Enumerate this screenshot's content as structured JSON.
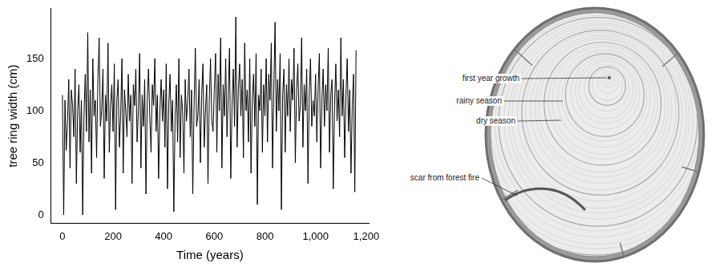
{
  "chart_data": {
    "type": "line",
    "x_label": "Time (years)",
    "y_label": "tree ring width (cm)",
    "x": [
      0,
      5,
      10,
      15,
      20,
      25,
      30,
      35,
      40,
      45,
      50,
      55,
      60,
      65,
      70,
      75,
      80,
      85,
      90,
      95,
      100,
      105,
      110,
      115,
      120,
      125,
      130,
      135,
      140,
      145,
      150,
      155,
      160,
      165,
      170,
      175,
      180,
      185,
      190,
      195,
      200,
      205,
      210,
      215,
      220,
      225,
      230,
      235,
      240,
      245,
      250,
      255,
      260,
      265,
      270,
      275,
      280,
      285,
      290,
      295,
      300,
      305,
      310,
      315,
      320,
      325,
      330,
      335,
      340,
      345,
      350,
      355,
      360,
      365,
      370,
      375,
      380,
      385,
      390,
      395,
      400,
      405,
      410,
      415,
      420,
      425,
      430,
      435,
      440,
      445,
      450,
      455,
      460,
      465,
      470,
      475,
      480,
      485,
      490,
      495,
      500,
      505,
      510,
      515,
      520,
      525,
      530,
      535,
      540,
      545,
      550,
      555,
      560,
      565,
      570,
      575,
      580,
      585,
      590,
      595,
      600,
      605,
      610,
      615,
      620,
      625,
      630,
      635,
      640,
      645,
      650,
      655,
      660,
      665,
      670,
      675,
      680,
      685,
      690,
      695,
      700,
      705,
      710,
      715,
      720,
      725,
      730,
      735,
      740,
      745,
      750,
      755,
      760,
      765,
      770,
      775,
      780,
      785,
      790,
      795,
      800,
      805,
      810,
      815,
      820,
      825,
      830,
      835,
      840,
      845,
      850,
      855,
      860,
      865,
      870,
      875,
      880,
      885,
      890,
      895,
      900,
      905,
      910,
      915,
      920,
      925,
      930,
      935,
      940,
      945,
      950,
      955,
      960,
      965,
      970,
      975,
      980,
      985,
      990,
      995,
      1000,
      1005,
      1010,
      1015,
      1020,
      1025,
      1030,
      1035,
      1040,
      1045,
      1050,
      1055,
      1060,
      1065,
      1070,
      1075,
      1080,
      1085,
      1090,
      1095,
      1100,
      1105,
      1110,
      1115,
      1120,
      1125,
      1130,
      1135,
      1140,
      1145,
      1150,
      1155,
      1160
    ],
    "values": [
      115,
      0,
      110,
      62,
      90,
      130,
      45,
      120,
      105,
      75,
      140,
      30,
      100,
      125,
      60,
      110,
      0,
      95,
      135,
      80,
      175,
      70,
      120,
      40,
      150,
      95,
      110,
      55,
      130,
      170,
      85,
      100,
      140,
      35,
      115,
      90,
      165,
      60,
      105,
      125,
      80,
      145,
      5,
      110,
      130,
      65,
      95,
      150,
      40,
      120,
      100,
      75,
      135,
      90,
      115,
      30,
      125,
      105,
      140,
      70,
      100,
      155,
      45,
      115,
      85,
      130,
      20,
      110,
      140,
      95,
      60,
      125,
      105,
      150,
      80,
      115,
      35,
      100,
      130,
      90,
      120,
      65,
      145,
      25,
      105,
      135,
      80,
      110,
      3,
      95,
      125,
      70,
      150,
      55,
      115,
      100,
      40,
      130,
      90,
      110,
      140,
      75,
      120,
      20,
      105,
      160,
      85,
      95,
      130,
      50,
      115,
      145,
      65,
      100,
      125,
      30,
      110,
      150,
      90,
      80,
      120,
      155,
      60,
      135,
      100,
      170,
      45,
      125,
      95,
      150,
      75,
      115,
      160,
      35,
      105,
      140,
      85,
      190,
      65,
      120,
      145,
      95,
      130,
      55,
      165,
      100,
      120,
      70,
      150,
      40,
      110,
      135,
      85,
      155,
      10,
      115,
      100,
      140,
      60,
      125,
      95,
      150,
      70,
      135,
      110,
      165,
      45,
      120,
      185,
      80,
      130,
      100,
      155,
      5,
      115,
      140,
      60,
      125,
      95,
      150,
      80,
      130,
      110,
      160,
      50,
      120,
      145,
      90,
      105,
      170,
      65,
      125,
      100,
      140,
      30,
      115,
      150,
      85,
      110,
      95,
      135,
      70,
      120,
      155,
      45,
      110,
      140,
      85,
      125,
      100,
      160,
      60,
      115,
      130,
      25,
      105,
      145,
      90,
      120,
      75,
      170,
      95,
      130,
      55,
      115,
      150,
      80,
      120,
      40,
      105,
      135,
      22,
      158
    ],
    "color": "#000000",
    "xlim": [
      -45,
      1210
    ],
    "xticks": [
      0,
      200,
      400,
      600,
      800,
      1000,
      1200
    ],
    "ylim": [
      -8,
      198
    ],
    "yticks": [
      0,
      50,
      100,
      150
    ],
    "grid": false,
    "marker": "none",
    "line_style": "solid"
  },
  "illustration": {
    "labels": [
      "first year growth",
      "rainy season",
      "dry season",
      "scar from forest fire"
    ]
  }
}
